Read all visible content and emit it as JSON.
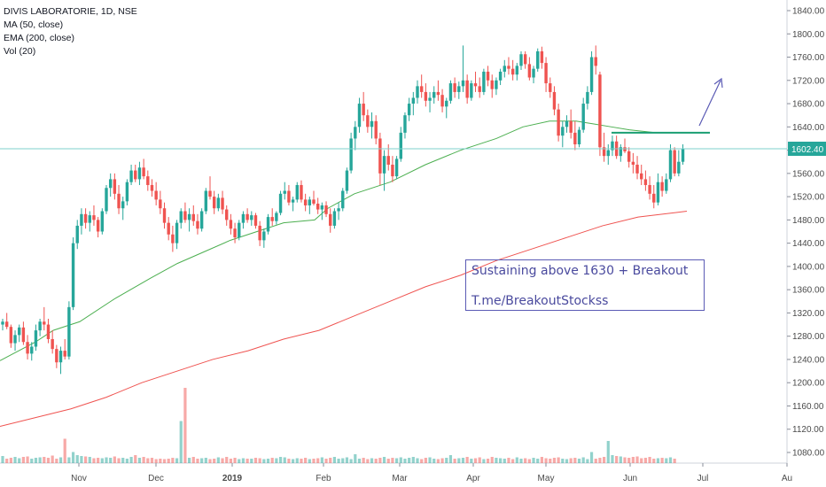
{
  "legend": {
    "title": "DIVIS LABORATORIE, 1D, NSE",
    "ma": "MA (50, close)",
    "ema": "EMA (200, close)",
    "vol": "Vol (20)"
  },
  "annotation": {
    "line1": "Sustaining above 1630 + Breakout",
    "line2": "T.me/BreakoutStockss"
  },
  "colors": {
    "up": "#26a69a",
    "down": "#ef5350",
    "ma": "#4caf50",
    "ema": "#ef5350",
    "hline": "#7fd1cc",
    "resistance": "#1a9e72",
    "arrow": "#5b5bb5",
    "price_label": "#26a69a"
  },
  "chart_data": {
    "type": "candlestick",
    "symbol": "DIVIS LABORATORIE",
    "interval": "1D",
    "exchange": "NSE",
    "current_price": 1602.4,
    "current_price_label": "1602.40",
    "y_axis": {
      "min": 1060,
      "max": 1850,
      "ticks": [
        "1840.00",
        "1800.00",
        "1760.00",
        "1720.00",
        "1680.00",
        "1640.00",
        "1600.00",
        "1560.00",
        "1520.00",
        "1480.00",
        "1440.00",
        "1400.00",
        "1360.00",
        "1320.00",
        "1280.00",
        "1240.00",
        "1200.00",
        "1160.00",
        "1120.00",
        "1080.00"
      ]
    },
    "x_axis": {
      "labels": [
        "Nov",
        "Dec",
        "2019",
        "Feb",
        "Mar",
        "Apr",
        "May",
        "Jun",
        "Jul",
        "Au"
      ],
      "bold": [
        false,
        false,
        true,
        false,
        false,
        false,
        false,
        false,
        false,
        false
      ]
    },
    "candles": [
      [
        1300,
        1310,
        1290,
        1305
      ],
      [
        1305,
        1320,
        1292,
        1296
      ],
      [
        1296,
        1300,
        1260,
        1268
      ],
      [
        1268,
        1290,
        1255,
        1282
      ],
      [
        1282,
        1300,
        1270,
        1295
      ],
      [
        1295,
        1305,
        1265,
        1270
      ],
      [
        1270,
        1282,
        1240,
        1250
      ],
      [
        1250,
        1270,
        1238,
        1262
      ],
      [
        1262,
        1300,
        1255,
        1290
      ],
      [
        1290,
        1310,
        1280,
        1305
      ],
      [
        1305,
        1330,
        1290,
        1300
      ],
      [
        1300,
        1310,
        1268,
        1275
      ],
      [
        1275,
        1290,
        1250,
        1258
      ],
      [
        1258,
        1265,
        1225,
        1235
      ],
      [
        1235,
        1262,
        1215,
        1255
      ],
      [
        1255,
        1275,
        1240,
        1245
      ],
      [
        1245,
        1340,
        1240,
        1330
      ],
      [
        1330,
        1450,
        1325,
        1440
      ],
      [
        1440,
        1480,
        1430,
        1470
      ],
      [
        1470,
        1500,
        1455,
        1490
      ],
      [
        1490,
        1500,
        1465,
        1475
      ],
      [
        1475,
        1495,
        1460,
        1488
      ],
      [
        1488,
        1505,
        1470,
        1480
      ],
      [
        1480,
        1485,
        1450,
        1460
      ],
      [
        1460,
        1500,
        1455,
        1495
      ],
      [
        1495,
        1540,
        1490,
        1535
      ],
      [
        1535,
        1560,
        1520,
        1550
      ],
      [
        1550,
        1560,
        1515,
        1525
      ],
      [
        1525,
        1540,
        1490,
        1500
      ],
      [
        1500,
        1520,
        1480,
        1512
      ],
      [
        1512,
        1550,
        1505,
        1545
      ],
      [
        1545,
        1575,
        1540,
        1565
      ],
      [
        1565,
        1575,
        1545,
        1550
      ],
      [
        1550,
        1580,
        1540,
        1570
      ],
      [
        1570,
        1585,
        1550,
        1555
      ],
      [
        1555,
        1565,
        1530,
        1540
      ],
      [
        1540,
        1550,
        1520,
        1530
      ],
      [
        1530,
        1545,
        1505,
        1515
      ],
      [
        1515,
        1530,
        1490,
        1500
      ],
      [
        1500,
        1510,
        1465,
        1475
      ],
      [
        1475,
        1485,
        1445,
        1455
      ],
      [
        1455,
        1470,
        1425,
        1440
      ],
      [
        1440,
        1480,
        1430,
        1475
      ],
      [
        1475,
        1500,
        1465,
        1495
      ],
      [
        1495,
        1510,
        1475,
        1480
      ],
      [
        1480,
        1500,
        1460,
        1490
      ],
      [
        1490,
        1505,
        1470,
        1478
      ],
      [
        1478,
        1490,
        1455,
        1465
      ],
      [
        1465,
        1500,
        1460,
        1495
      ],
      [
        1495,
        1535,
        1490,
        1530
      ],
      [
        1530,
        1555,
        1515,
        1520
      ],
      [
        1520,
        1530,
        1490,
        1500
      ],
      [
        1500,
        1525,
        1495,
        1518
      ],
      [
        1518,
        1530,
        1490,
        1498
      ],
      [
        1498,
        1505,
        1470,
        1480
      ],
      [
        1480,
        1490,
        1455,
        1465
      ],
      [
        1465,
        1475,
        1440,
        1450
      ],
      [
        1450,
        1480,
        1445,
        1475
      ],
      [
        1475,
        1495,
        1465,
        1490
      ],
      [
        1490,
        1500,
        1475,
        1480
      ],
      [
        1480,
        1495,
        1470,
        1488
      ],
      [
        1488,
        1492,
        1465,
        1470
      ],
      [
        1470,
        1478,
        1435,
        1445
      ],
      [
        1445,
        1465,
        1432,
        1460
      ],
      [
        1460,
        1490,
        1455,
        1485
      ],
      [
        1485,
        1500,
        1470,
        1478
      ],
      [
        1478,
        1495,
        1472,
        1492
      ],
      [
        1492,
        1530,
        1488,
        1525
      ],
      [
        1525,
        1545,
        1515,
        1530
      ],
      [
        1530,
        1540,
        1505,
        1510
      ],
      [
        1510,
        1520,
        1495,
        1515
      ],
      [
        1515,
        1545,
        1510,
        1540
      ],
      [
        1540,
        1548,
        1510,
        1515
      ],
      [
        1515,
        1525,
        1495,
        1505
      ],
      [
        1505,
        1520,
        1490,
        1515
      ],
      [
        1515,
        1530,
        1505,
        1508
      ],
      [
        1508,
        1518,
        1490,
        1498
      ],
      [
        1498,
        1510,
        1480,
        1505
      ],
      [
        1505,
        1512,
        1485,
        1490
      ],
      [
        1490,
        1500,
        1458,
        1470
      ],
      [
        1470,
        1500,
        1465,
        1495
      ],
      [
        1495,
        1510,
        1480,
        1500
      ],
      [
        1500,
        1535,
        1495,
        1530
      ],
      [
        1530,
        1570,
        1525,
        1565
      ],
      [
        1565,
        1630,
        1560,
        1620
      ],
      [
        1620,
        1650,
        1600,
        1640
      ],
      [
        1640,
        1690,
        1630,
        1680
      ],
      [
        1680,
        1700,
        1650,
        1660
      ],
      [
        1660,
        1670,
        1630,
        1640
      ],
      [
        1640,
        1665,
        1620,
        1650
      ],
      [
        1650,
        1660,
        1610,
        1620
      ],
      [
        1620,
        1630,
        1540,
        1560
      ],
      [
        1560,
        1600,
        1530,
        1590
      ],
      [
        1590,
        1610,
        1565,
        1575
      ],
      [
        1575,
        1590,
        1545,
        1555
      ],
      [
        1555,
        1590,
        1550,
        1585
      ],
      [
        1585,
        1640,
        1580,
        1630
      ],
      [
        1630,
        1665,
        1620,
        1660
      ],
      [
        1660,
        1690,
        1650,
        1680
      ],
      [
        1680,
        1700,
        1660,
        1690
      ],
      [
        1690,
        1720,
        1680,
        1710
      ],
      [
        1710,
        1730,
        1690,
        1700
      ],
      [
        1700,
        1715,
        1675,
        1685
      ],
      [
        1685,
        1700,
        1665,
        1690
      ],
      [
        1690,
        1710,
        1680,
        1700
      ],
      [
        1700,
        1720,
        1685,
        1695
      ],
      [
        1695,
        1705,
        1665,
        1675
      ],
      [
        1675,
        1690,
        1655,
        1685
      ],
      [
        1685,
        1720,
        1680,
        1715
      ],
      [
        1715,
        1725,
        1690,
        1700
      ],
      [
        1700,
        1718,
        1688,
        1710
      ],
      [
        1710,
        1780,
        1700,
        1720
      ],
      [
        1720,
        1730,
        1680,
        1690
      ],
      [
        1690,
        1720,
        1685,
        1715
      ],
      [
        1715,
        1735,
        1700,
        1710
      ],
      [
        1710,
        1725,
        1690,
        1700
      ],
      [
        1700,
        1740,
        1695,
        1735
      ],
      [
        1735,
        1745,
        1710,
        1720
      ],
      [
        1720,
        1730,
        1690,
        1705
      ],
      [
        1705,
        1725,
        1695,
        1720
      ],
      [
        1720,
        1740,
        1712,
        1735
      ],
      [
        1735,
        1755,
        1725,
        1745
      ],
      [
        1745,
        1760,
        1730,
        1740
      ],
      [
        1740,
        1755,
        1720,
        1730
      ],
      [
        1730,
        1750,
        1720,
        1745
      ],
      [
        1745,
        1770,
        1738,
        1765
      ],
      [
        1765,
        1770,
        1740,
        1748
      ],
      [
        1748,
        1760,
        1720,
        1725
      ],
      [
        1725,
        1745,
        1715,
        1740
      ],
      [
        1740,
        1775,
        1735,
        1770
      ],
      [
        1770,
        1778,
        1740,
        1750
      ],
      [
        1750,
        1760,
        1700,
        1715
      ],
      [
        1715,
        1725,
        1690,
        1700
      ],
      [
        1700,
        1710,
        1660,
        1670
      ],
      [
        1670,
        1680,
        1615,
        1625
      ],
      [
        1625,
        1650,
        1605,
        1640
      ],
      [
        1640,
        1660,
        1630,
        1650
      ],
      [
        1650,
        1670,
        1620,
        1630
      ],
      [
        1630,
        1650,
        1600,
        1610
      ],
      [
        1610,
        1640,
        1605,
        1635
      ],
      [
        1635,
        1690,
        1630,
        1680
      ],
      [
        1680,
        1710,
        1670,
        1700
      ],
      [
        1700,
        1770,
        1695,
        1760
      ],
      [
        1760,
        1780,
        1730,
        1745
      ],
      [
        1730,
        1735,
        1590,
        1605
      ],
      [
        1605,
        1630,
        1580,
        1590
      ],
      [
        1590,
        1610,
        1575,
        1600
      ],
      [
        1600,
        1625,
        1590,
        1615
      ],
      [
        1615,
        1625,
        1585,
        1590
      ],
      [
        1590,
        1610,
        1580,
        1605
      ],
      [
        1605,
        1620,
        1595,
        1598
      ],
      [
        1598,
        1605,
        1570,
        1580
      ],
      [
        1580,
        1595,
        1560,
        1575
      ],
      [
        1575,
        1590,
        1550,
        1560
      ],
      [
        1560,
        1575,
        1540,
        1550
      ],
      [
        1550,
        1565,
        1530,
        1540
      ],
      [
        1540,
        1555,
        1515,
        1525
      ],
      [
        1525,
        1540,
        1500,
        1510
      ],
      [
        1510,
        1560,
        1505,
        1545
      ],
      [
        1545,
        1555,
        1520,
        1530
      ],
      [
        1530,
        1560,
        1525,
        1550
      ],
      [
        1550,
        1610,
        1545,
        1600
      ],
      [
        1600,
        1605,
        1555,
        1560
      ],
      [
        1560,
        1600,
        1555,
        1580
      ],
      [
        1580,
        1610,
        1575,
        1602
      ]
    ],
    "volume": [
      16,
      10,
      12,
      14,
      11,
      14,
      15,
      10,
      12,
      13,
      14,
      12,
      17,
      10,
      13,
      55,
      13,
      25,
      18,
      16,
      15,
      14,
      11,
      12,
      11,
      13,
      12,
      15,
      11,
      12,
      10,
      14,
      18,
      12,
      14,
      11,
      12,
      9,
      10,
      9,
      10,
      12,
      11,
      95,
      170,
      12,
      14,
      10,
      11,
      12,
      9,
      10,
      13,
      11,
      14,
      10,
      12,
      9,
      11,
      10,
      10,
      12,
      11,
      9,
      10,
      12,
      11,
      14,
      13,
      10,
      9,
      11,
      10,
      12,
      9,
      10,
      11,
      13,
      10,
      12,
      14,
      10,
      11,
      13,
      9,
      20,
      10,
      12,
      9,
      11,
      10,
      12,
      14,
      10,
      12,
      11,
      13,
      10,
      12,
      14,
      11,
      9,
      12,
      13,
      10,
      9,
      11,
      12,
      18,
      10,
      11,
      12,
      14,
      10,
      11,
      13,
      9,
      10,
      14,
      12,
      11,
      10,
      12,
      9,
      13,
      10,
      11,
      9,
      12,
      10,
      14,
      11,
      10,
      12,
      13,
      10,
      9,
      11,
      12,
      10,
      13,
      9,
      25,
      10,
      12,
      14,
      50,
      18,
      16,
      15,
      13,
      12,
      14,
      15,
      11,
      12,
      14,
      10,
      11,
      12,
      11,
      13,
      10
    ],
    "ma50": [
      [
        0,
        1238
      ],
      [
        40,
        1270
      ],
      [
        60,
        1290
      ],
      [
        90,
        1305
      ],
      [
        130,
        1345
      ],
      [
        170,
        1380
      ],
      [
        200,
        1405
      ],
      [
        230,
        1425
      ],
      [
        260,
        1445
      ],
      [
        290,
        1460
      ],
      [
        320,
        1475
      ],
      [
        355,
        1480
      ],
      [
        370,
        1500
      ],
      [
        400,
        1525
      ],
      [
        440,
        1545
      ],
      [
        480,
        1575
      ],
      [
        520,
        1600
      ],
      [
        560,
        1620
      ],
      [
        590,
        1640
      ],
      [
        620,
        1650
      ],
      [
        650,
        1650
      ],
      [
        670,
        1645
      ],
      [
        690,
        1640
      ],
      [
        710,
        1635
      ],
      [
        740,
        1630
      ],
      [
        775,
        1630
      ]
    ],
    "ema200": [
      [
        0,
        1125
      ],
      [
        40,
        1140
      ],
      [
        80,
        1155
      ],
      [
        120,
        1175
      ],
      [
        160,
        1200
      ],
      [
        200,
        1220
      ],
      [
        240,
        1240
      ],
      [
        280,
        1255
      ],
      [
        320,
        1275
      ],
      [
        360,
        1290
      ],
      [
        400,
        1315
      ],
      [
        440,
        1340
      ],
      [
        480,
        1365
      ],
      [
        520,
        1385
      ],
      [
        560,
        1410
      ],
      [
        600,
        1430
      ],
      [
        640,
        1450
      ],
      [
        680,
        1470
      ],
      [
        720,
        1485
      ],
      [
        775,
        1495
      ]
    ],
    "resistance_level": 1630,
    "price_line": 1602.4
  }
}
